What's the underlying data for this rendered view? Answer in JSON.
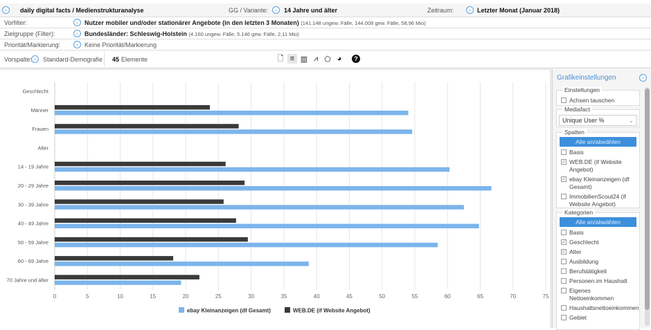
{
  "header": {
    "title": "daily digital facts / Medienstrukturanalyse",
    "gg_label": "GG / Variante:",
    "gg_value": "14 Jahre und älter",
    "zeitraum_label": "Zeitraum:",
    "zeitraum_value": "Letzter Monat (Januar 2018)"
  },
  "filters": [
    {
      "label": "Vorfilter:",
      "value": "Nutzer mobiler und/oder stationärer Angebote (in den letzten 3 Monaten)",
      "detail": "(141.148 ungew. Fälle, 144.008 gew. Fälle, 58,96 Mio)"
    },
    {
      "label": "Zielgruppe (Filter):",
      "value": "Bundesländer: Schleswig-Holstein",
      "detail": "(4.160 ungew. Fälle, 5.146 gew. Fälle, 2,11 Mio)"
    },
    {
      "label": "Priorität/Markierung:",
      "value": "Keine Priorität/Markierung",
      "detail": ""
    }
  ],
  "vorspalte": {
    "label": "Vorspalte:",
    "value": "Standard-Demografie",
    "count": "45",
    "count_label": "Elemente"
  },
  "panel": {
    "title": "Grafikeinstellungen",
    "einstellungen": {
      "title": "Einstellungen",
      "items": [
        {
          "label": "Achsen tauschen",
          "checked": false
        }
      ]
    },
    "mediafact": {
      "title": "Mediafact",
      "value": "Unique User %"
    },
    "spalten": {
      "title": "Spalten",
      "button": "Alle an/abwählen",
      "items": [
        {
          "label": "Basis",
          "checked": false
        },
        {
          "label": "WEB.DE (if Website Angebot)",
          "checked": true
        },
        {
          "label": "ebay Kleinanzeigen (df Gesamt)",
          "checked": true
        },
        {
          "label": "ImmobilienScout24 (if Website Angebot)",
          "checked": false
        }
      ]
    },
    "kategorien": {
      "title": "Kategorien",
      "button": "Alle an/abwählen",
      "items": [
        {
          "label": "Basis",
          "checked": false
        },
        {
          "label": "Geschlecht",
          "checked": true
        },
        {
          "label": "Alter",
          "checked": true
        },
        {
          "label": "Ausbildung",
          "checked": false
        },
        {
          "label": "Berufstätigkeit",
          "checked": false
        },
        {
          "label": "Personen im Haushalt",
          "checked": false
        },
        {
          "label": "Eigenes Nettoeinkommen",
          "checked": false
        },
        {
          "label": "Haushaltsnettoeinkommen",
          "checked": false
        },
        {
          "label": "Gebiet",
          "checked": false
        }
      ]
    }
  },
  "chart_data": {
    "type": "bar",
    "orientation": "horizontal",
    "categories": [
      "Geschlecht",
      "Männer",
      "Frauen",
      "Alter",
      "14 - 19 Jahre",
      "20 - 29 Jahre",
      "30 - 39 Jahre",
      "40 - 49 Jahre",
      "50 - 59 Jahre",
      "60 - 69 Jahre",
      "70 Jahre und älter"
    ],
    "series": [
      {
        "name": "WEB.DE (if Website Angebot)",
        "color": "#3a3a3a",
        "values": [
          null,
          23.7,
          28.1,
          null,
          26.1,
          29.0,
          25.8,
          27.7,
          29.5,
          18.1,
          22.1
        ]
      },
      {
        "name": "ebay Kleinanzeigen (df Gesamt)",
        "color": "#7cb5ec",
        "values": [
          null,
          54.0,
          54.6,
          null,
          60.3,
          66.7,
          62.5,
          64.8,
          58.5,
          38.8,
          19.3
        ]
      }
    ],
    "xlim": [
      0,
      75
    ],
    "xticks": [
      0,
      5,
      10,
      15,
      20,
      25,
      30,
      35,
      40,
      45,
      50,
      55,
      60,
      65,
      70,
      75
    ],
    "legend": [
      "ebay Kleinanzeigen (df Gesamt)",
      "WEB.DE (if Website Angebot)"
    ],
    "legend_position": "bottom",
    "grid": true
  }
}
